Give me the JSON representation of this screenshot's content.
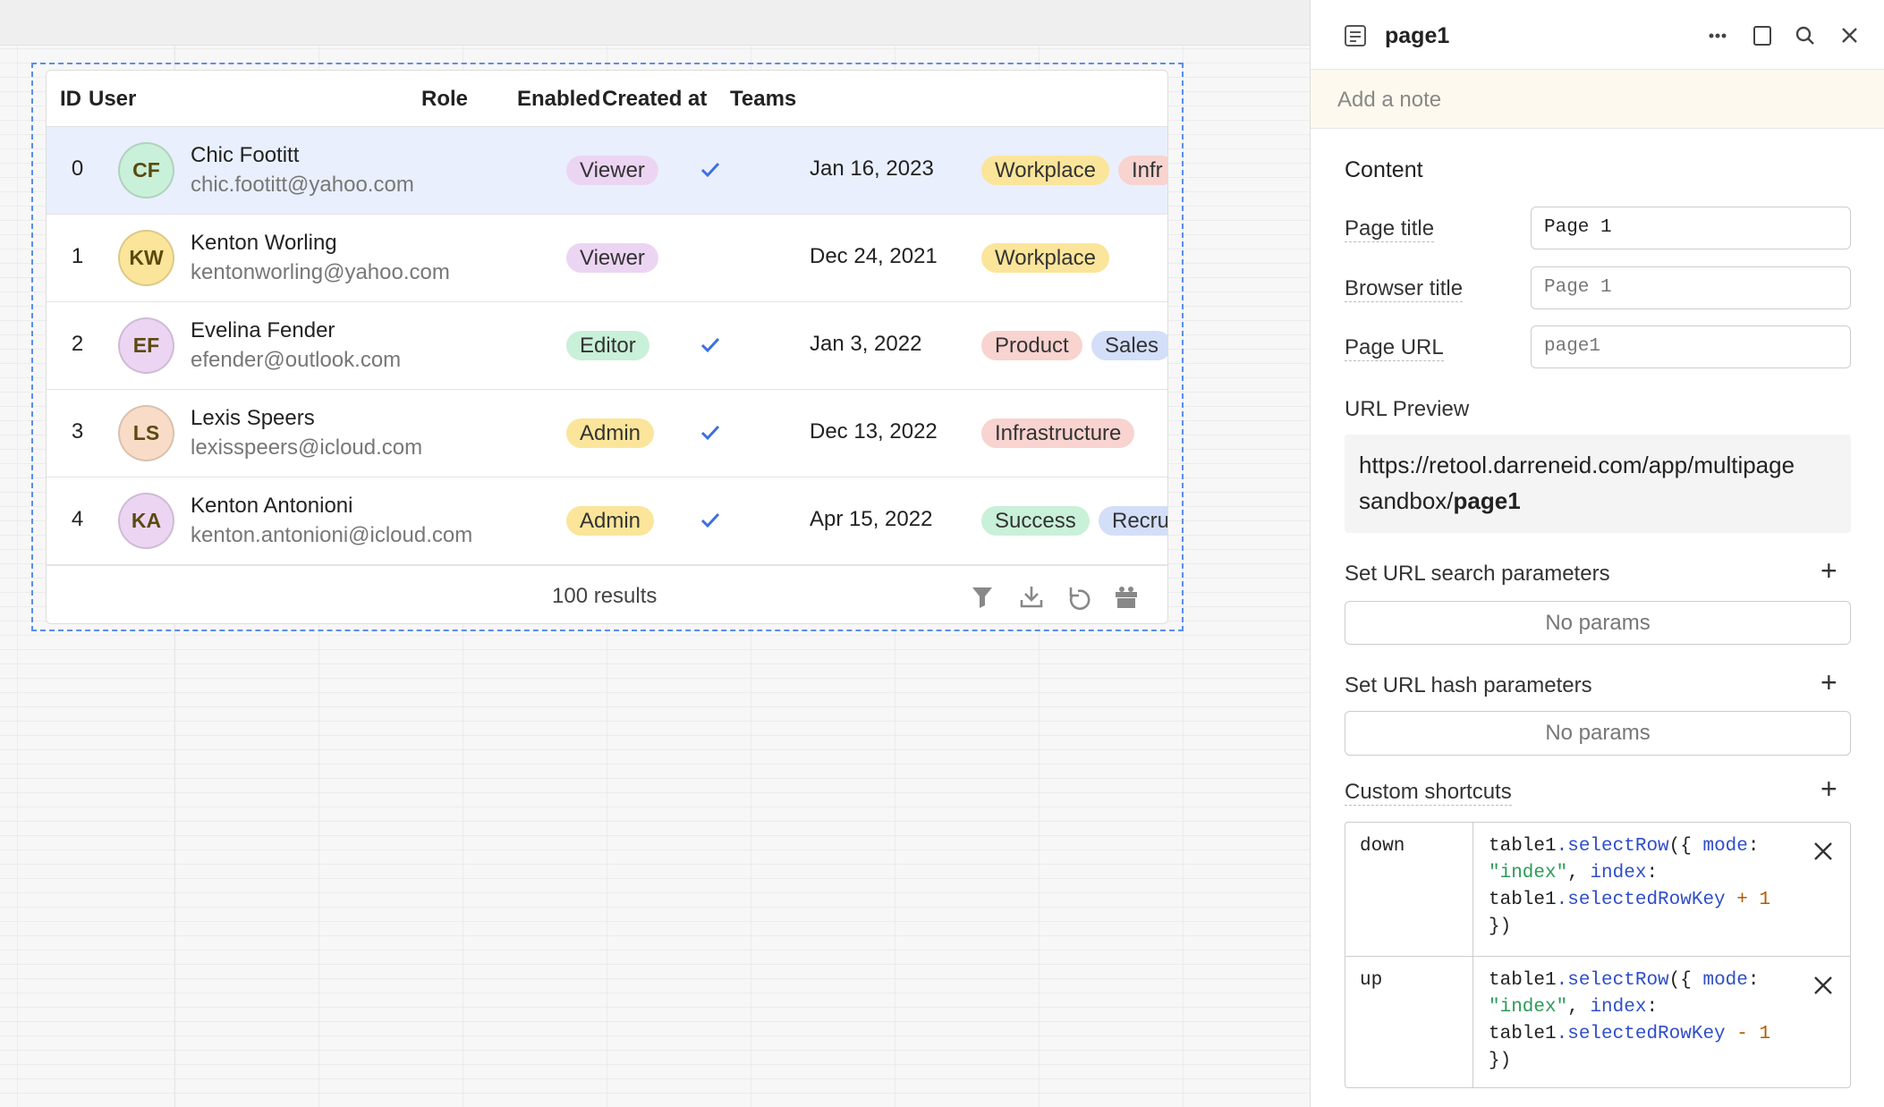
{
  "table": {
    "columns": [
      "ID",
      "User",
      "Role",
      "Enabled",
      "Created at",
      "Teams"
    ],
    "rows": [
      {
        "id": "0",
        "initials": "CF",
        "avatar_color": "#c9f0d8",
        "name": "Chic Footitt",
        "email": "chic.footitt@yahoo.com",
        "role": "Viewer",
        "role_color": "#ecd5f3",
        "enabled": true,
        "created": "Jan 16, 2023",
        "teams": [
          {
            "text": "Workplace",
            "color": "#fbe59a"
          },
          {
            "text": "Infr",
            "color": "#f8d3d0"
          }
        ],
        "selected": true
      },
      {
        "id": "1",
        "initials": "KW",
        "avatar_color": "#fbe59a",
        "name": "Kenton Worling",
        "email": "kentonworling@yahoo.com",
        "role": "Viewer",
        "role_color": "#ecd5f3",
        "enabled": false,
        "created": "Dec 24, 2021",
        "teams": [
          {
            "text": "Workplace",
            "color": "#fbe59a"
          }
        ]
      },
      {
        "id": "2",
        "initials": "EF",
        "avatar_color": "#ecd5f3",
        "name": "Evelina Fender",
        "email": "efender@outlook.com",
        "role": "Editor",
        "role_color": "#c9f0d8",
        "enabled": true,
        "created": "Jan 3, 2022",
        "teams": [
          {
            "text": "Product",
            "color": "#f8d3d0"
          },
          {
            "text": "Sales",
            "color": "#d3def9"
          }
        ]
      },
      {
        "id": "3",
        "initials": "LS",
        "avatar_color": "#f9dcc7",
        "name": "Lexis Speers",
        "email": "lexisspeers@icloud.com",
        "role": "Admin",
        "role_color": "#fbe59a",
        "enabled": true,
        "created": "Dec 13, 2022",
        "teams": [
          {
            "text": "Infrastructure",
            "color": "#f8d3d0"
          }
        ]
      },
      {
        "id": "4",
        "initials": "KA",
        "avatar_color": "#ecd5f3",
        "name": "Kenton Antonioni",
        "email": "kenton.antonioni@icloud.com",
        "role": "Admin",
        "role_color": "#fbe59a",
        "enabled": true,
        "created": "Apr 15, 2022",
        "teams": [
          {
            "text": "Success",
            "color": "#c9f0d8"
          },
          {
            "text": "Recru",
            "color": "#d3def9"
          }
        ]
      }
    ],
    "footer": "100 results"
  },
  "panel": {
    "title": "page1",
    "note_placeholder": "Add a note",
    "section": "Content",
    "fields": [
      {
        "label": "Page title",
        "value": "Page 1"
      },
      {
        "label": "Browser title",
        "value": "Page 1"
      },
      {
        "label": "Page URL",
        "value": "page1"
      }
    ],
    "preview_label": "URL Preview",
    "preview_url": "https://retool.darreneid.com/app/multipage sandbox/",
    "preview_page": "page1",
    "search_params": {
      "label": "Set URL search parameters",
      "empty": "No params"
    },
    "hash_params": {
      "label": "Set URL hash parameters",
      "empty": "No params"
    },
    "shortcuts_label": "Custom shortcuts",
    "shortcuts": [
      {
        "key": "down",
        "code": [
          {
            "text": "table1",
            "color": "#222"
          },
          {
            "text": ".selectRow",
            "color": "#2f4ec8"
          },
          {
            "text": "({ ",
            "color": "#222"
          },
          {
            "text": "mode",
            "color": "#2f4ec8"
          },
          {
            "text": ": ",
            "color": "#222"
          },
          {
            "text": "\"index\"",
            "color": "#2e9a57"
          },
          {
            "text": ", ",
            "color": "#222"
          },
          {
            "text": "index",
            "color": "#2f4ec8"
          },
          {
            "text": ": ",
            "color": "#222"
          },
          {
            "text": "table1",
            "color": "#222"
          },
          {
            "text": ".selectedRowKey",
            "color": "#2f4ec8"
          },
          {
            "text": " + ",
            "color": "#b25a00"
          },
          {
            "text": "1",
            "color": "#b25a00"
          },
          {
            "text": " })",
            "color": "#222"
          }
        ]
      },
      {
        "key": "up",
        "code": [
          {
            "text": "table1",
            "color": "#222"
          },
          {
            "text": ".selectRow",
            "color": "#2f4ec8"
          },
          {
            "text": "({ ",
            "color": "#222"
          },
          {
            "text": "mode",
            "color": "#2f4ec8"
          },
          {
            "text": ": ",
            "color": "#222"
          },
          {
            "text": "\"index\"",
            "color": "#2e9a57"
          },
          {
            "text": ", ",
            "color": "#222"
          },
          {
            "text": "index",
            "color": "#2f4ec8"
          },
          {
            "text": ": ",
            "color": "#222"
          },
          {
            "text": "table1",
            "color": "#222"
          },
          {
            "text": ".selectedRowKey",
            "color": "#2f4ec8"
          },
          {
            "text": " - ",
            "color": "#b25a00"
          },
          {
            "text": "1",
            "color": "#b25a00"
          },
          {
            "text": " })",
            "color": "#222"
          }
        ]
      }
    ]
  }
}
